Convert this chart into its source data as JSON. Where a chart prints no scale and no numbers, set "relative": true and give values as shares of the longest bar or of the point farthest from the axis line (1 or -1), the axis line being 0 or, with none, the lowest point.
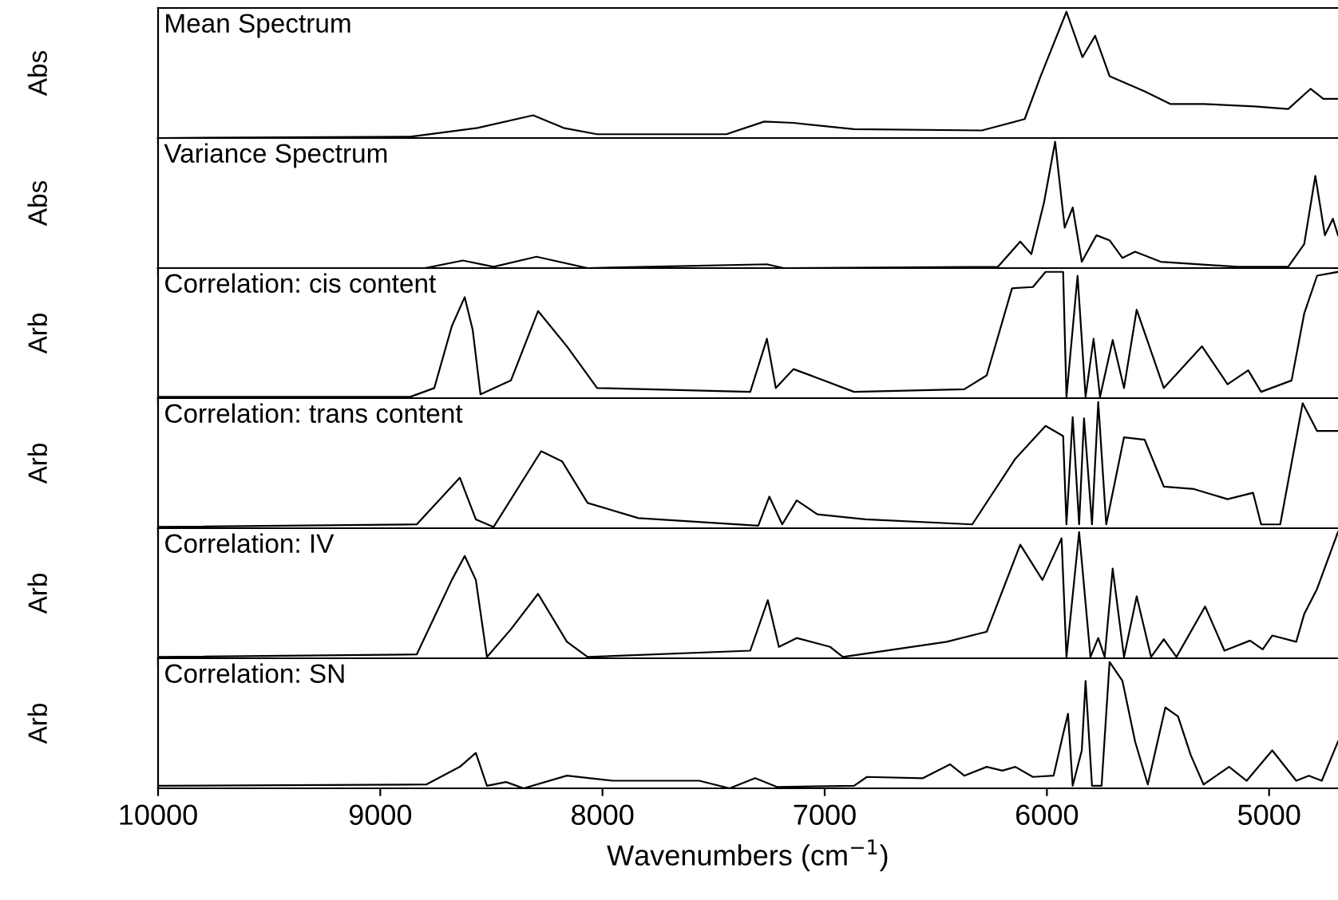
{
  "chart_data": [
    {
      "type": "line",
      "title": "Mean Spectrum",
      "ylabel": "Abs",
      "relative": true,
      "xlim": [
        10000,
        4690
      ],
      "xticks": [
        10000,
        9000,
        8000,
        7000,
        6000,
        5000
      ],
      "tick_labels": false,
      "grid": false,
      "series": [
        {
          "color": "#000000",
          "x": [
            10000,
            8865,
            8563,
            8312,
            8175,
            8024,
            7443,
            7272,
            7140,
            6868,
            6293,
            6100,
            6028,
            5912,
            5840,
            5783,
            5718,
            5560,
            5445,
            5295,
            5065,
            4914,
            4813,
            4756,
            4690
          ],
          "values": [
            0.0,
            0.01,
            0.08,
            0.18,
            0.08,
            0.03,
            0.03,
            0.13,
            0.12,
            0.07,
            0.06,
            0.15,
            0.49,
            1.0,
            0.64,
            0.81,
            0.49,
            0.37,
            0.27,
            0.27,
            0.25,
            0.23,
            0.39,
            0.31,
            0.31
          ]
        }
      ]
    },
    {
      "type": "line",
      "title": "Variance Spectrum",
      "ylabel": "Abs",
      "relative": true,
      "xlim": [
        10000,
        4690
      ],
      "xticks": [
        10000,
        9000,
        8000,
        7000,
        6000,
        5000
      ],
      "tick_labels": false,
      "grid": false,
      "series": [
        {
          "color": "#000000",
          "x": [
            10000,
            8800,
            8628,
            8490,
            8297,
            8067,
            7260,
            7184,
            6221,
            6120,
            6070,
            6013,
            5963,
            5920,
            5884,
            5843,
            5777,
            5718,
            5660,
            5603,
            5488,
            5143,
            4914,
            4842,
            4792,
            4749,
            4713,
            4690
          ],
          "values": [
            0.0,
            0.0,
            0.06,
            0.01,
            0.09,
            0.0,
            0.03,
            0.0,
            0.01,
            0.21,
            0.11,
            0.52,
            1.0,
            0.32,
            0.48,
            0.05,
            0.26,
            0.22,
            0.08,
            0.13,
            0.05,
            0.01,
            0.01,
            0.19,
            0.73,
            0.26,
            0.39,
            0.26
          ]
        }
      ]
    },
    {
      "type": "line",
      "title": "Correlation: cis content",
      "ylabel": "Arb",
      "relative": true,
      "xlim": [
        10000,
        4690
      ],
      "xticks": [
        10000,
        9000,
        8000,
        7000,
        6000,
        5000
      ],
      "tick_labels": false,
      "grid": false,
      "series": [
        {
          "color": "#000000",
          "x": [
            10000,
            8865,
            8757,
            8678,
            8620,
            8584,
            8549,
            8412,
            8290,
            8160,
            8024,
            7335,
            7260,
            7220,
            7140,
            7033,
            6868,
            6372,
            6271,
            6157,
            6063,
            6006,
            5927,
            5912,
            5862,
            5826,
            5790,
            5761,
            5704,
            5653,
            5596,
            5474,
            5302,
            5187,
            5094,
            5036,
            4899,
            4842,
            4784,
            4690
          ],
          "values": [
            0.01,
            0.01,
            0.08,
            0.57,
            0.8,
            0.54,
            0.03,
            0.14,
            0.69,
            0.41,
            0.08,
            0.05,
            0.47,
            0.08,
            0.23,
            0.16,
            0.05,
            0.07,
            0.18,
            0.87,
            0.88,
            1.0,
            1.0,
            0.01,
            0.97,
            0.01,
            0.47,
            0.01,
            0.46,
            0.08,
            0.7,
            0.08,
            0.41,
            0.11,
            0.22,
            0.05,
            0.14,
            0.67,
            0.97,
            1.0
          ]
        }
      ]
    },
    {
      "type": "line",
      "title": "Correlation: trans content",
      "ylabel": "Arb",
      "relative": true,
      "xlim": [
        10000,
        4690
      ],
      "xticks": [
        10000,
        9000,
        8000,
        7000,
        6000,
        5000
      ],
      "tick_labels": false,
      "grid": false,
      "series": [
        {
          "color": "#000000",
          "x": [
            10000,
            8836,
            8642,
            8570,
            8490,
            8276,
            8182,
            8067,
            7838,
            7299,
            7249,
            7191,
            7126,
            7033,
            6817,
            6336,
            6142,
            6006,
            5927,
            5912,
            5884,
            5855,
            5833,
            5797,
            5769,
            5733,
            5653,
            5560,
            5474,
            5338,
            5187,
            5072,
            5036,
            4950,
            4849,
            4784,
            4690
          ],
          "values": [
            0.01,
            0.03,
            0.4,
            0.07,
            0.01,
            0.61,
            0.53,
            0.2,
            0.08,
            0.02,
            0.25,
            0.03,
            0.22,
            0.11,
            0.07,
            0.03,
            0.55,
            0.81,
            0.73,
            0.03,
            0.88,
            0.03,
            0.87,
            0.03,
            1.0,
            0.03,
            0.72,
            0.7,
            0.33,
            0.31,
            0.23,
            0.28,
            0.03,
            0.03,
            0.99,
            0.77,
            0.77
          ]
        }
      ]
    },
    {
      "type": "line",
      "title": "Correlation: IV",
      "ylabel": "Arb",
      "relative": true,
      "xlim": [
        10000,
        4690
      ],
      "xticks": [
        10000,
        9000,
        8000,
        7000,
        6000,
        5000
      ],
      "tick_labels": false,
      "grid": false,
      "series": [
        {
          "color": "#000000",
          "x": [
            10000,
            8836,
            8678,
            8620,
            8570,
            8520,
            8412,
            8290,
            8160,
            8067,
            7335,
            7256,
            7206,
            7126,
            6975,
            6918,
            6451,
            6271,
            6120,
            6020,
            5934,
            5912,
            5855,
            5804,
            5769,
            5740,
            5704,
            5653,
            5596,
            5531,
            5474,
            5417,
            5288,
            5201,
            5086,
            5029,
            4986,
            4878,
            4842,
            4784,
            4690
          ],
          "values": [
            0.01,
            0.03,
            0.62,
            0.81,
            0.62,
            0.01,
            0.23,
            0.51,
            0.13,
            0.01,
            0.06,
            0.46,
            0.09,
            0.16,
            0.09,
            0.01,
            0.13,
            0.21,
            0.9,
            0.62,
            0.95,
            0.01,
            1.0,
            0.01,
            0.16,
            0.01,
            0.71,
            0.01,
            0.49,
            0.01,
            0.15,
            0.01,
            0.41,
            0.06,
            0.14,
            0.07,
            0.18,
            0.13,
            0.35,
            0.55,
            1.0
          ]
        }
      ]
    },
    {
      "type": "line",
      "title": "Correlation: SN",
      "ylabel": "Arb",
      "xlabel": "Wavenumbers (cm$^{−1}$)",
      "relative": true,
      "xlim": [
        10000,
        4690
      ],
      "xticks": [
        10000,
        9000,
        8000,
        7000,
        6000,
        5000
      ],
      "tick_labels": "x",
      "grid": false,
      "series": [
        {
          "color": "#000000",
          "x": [
            10000,
            8793,
            8642,
            8570,
            8520,
            8434,
            8355,
            8160,
            7953,
            7565,
            7428,
            7313,
            7213,
            6868,
            6810,
            6558,
            6436,
            6372,
            6271,
            6200,
            6142,
            6063,
            5970,
            5927,
            5905,
            5884,
            5843,
            5826,
            5797,
            5754,
            5718,
            5660,
            5603,
            5546,
            5467,
            5410,
            5352,
            5295,
            5180,
            5101,
            4986,
            4878,
            4821,
            4763,
            4690
          ],
          "values": [
            0.02,
            0.03,
            0.17,
            0.28,
            0.02,
            0.05,
            0.0,
            0.1,
            0.06,
            0.06,
            0.0,
            0.08,
            0.01,
            0.02,
            0.09,
            0.08,
            0.19,
            0.1,
            0.17,
            0.14,
            0.17,
            0.09,
            0.1,
            0.43,
            0.59,
            0.02,
            0.3,
            0.85,
            0.02,
            0.02,
            1.0,
            0.85,
            0.37,
            0.03,
            0.64,
            0.57,
            0.26,
            0.03,
            0.17,
            0.06,
            0.3,
            0.06,
            0.1,
            0.06,
            0.37
          ]
        }
      ]
    }
  ]
}
